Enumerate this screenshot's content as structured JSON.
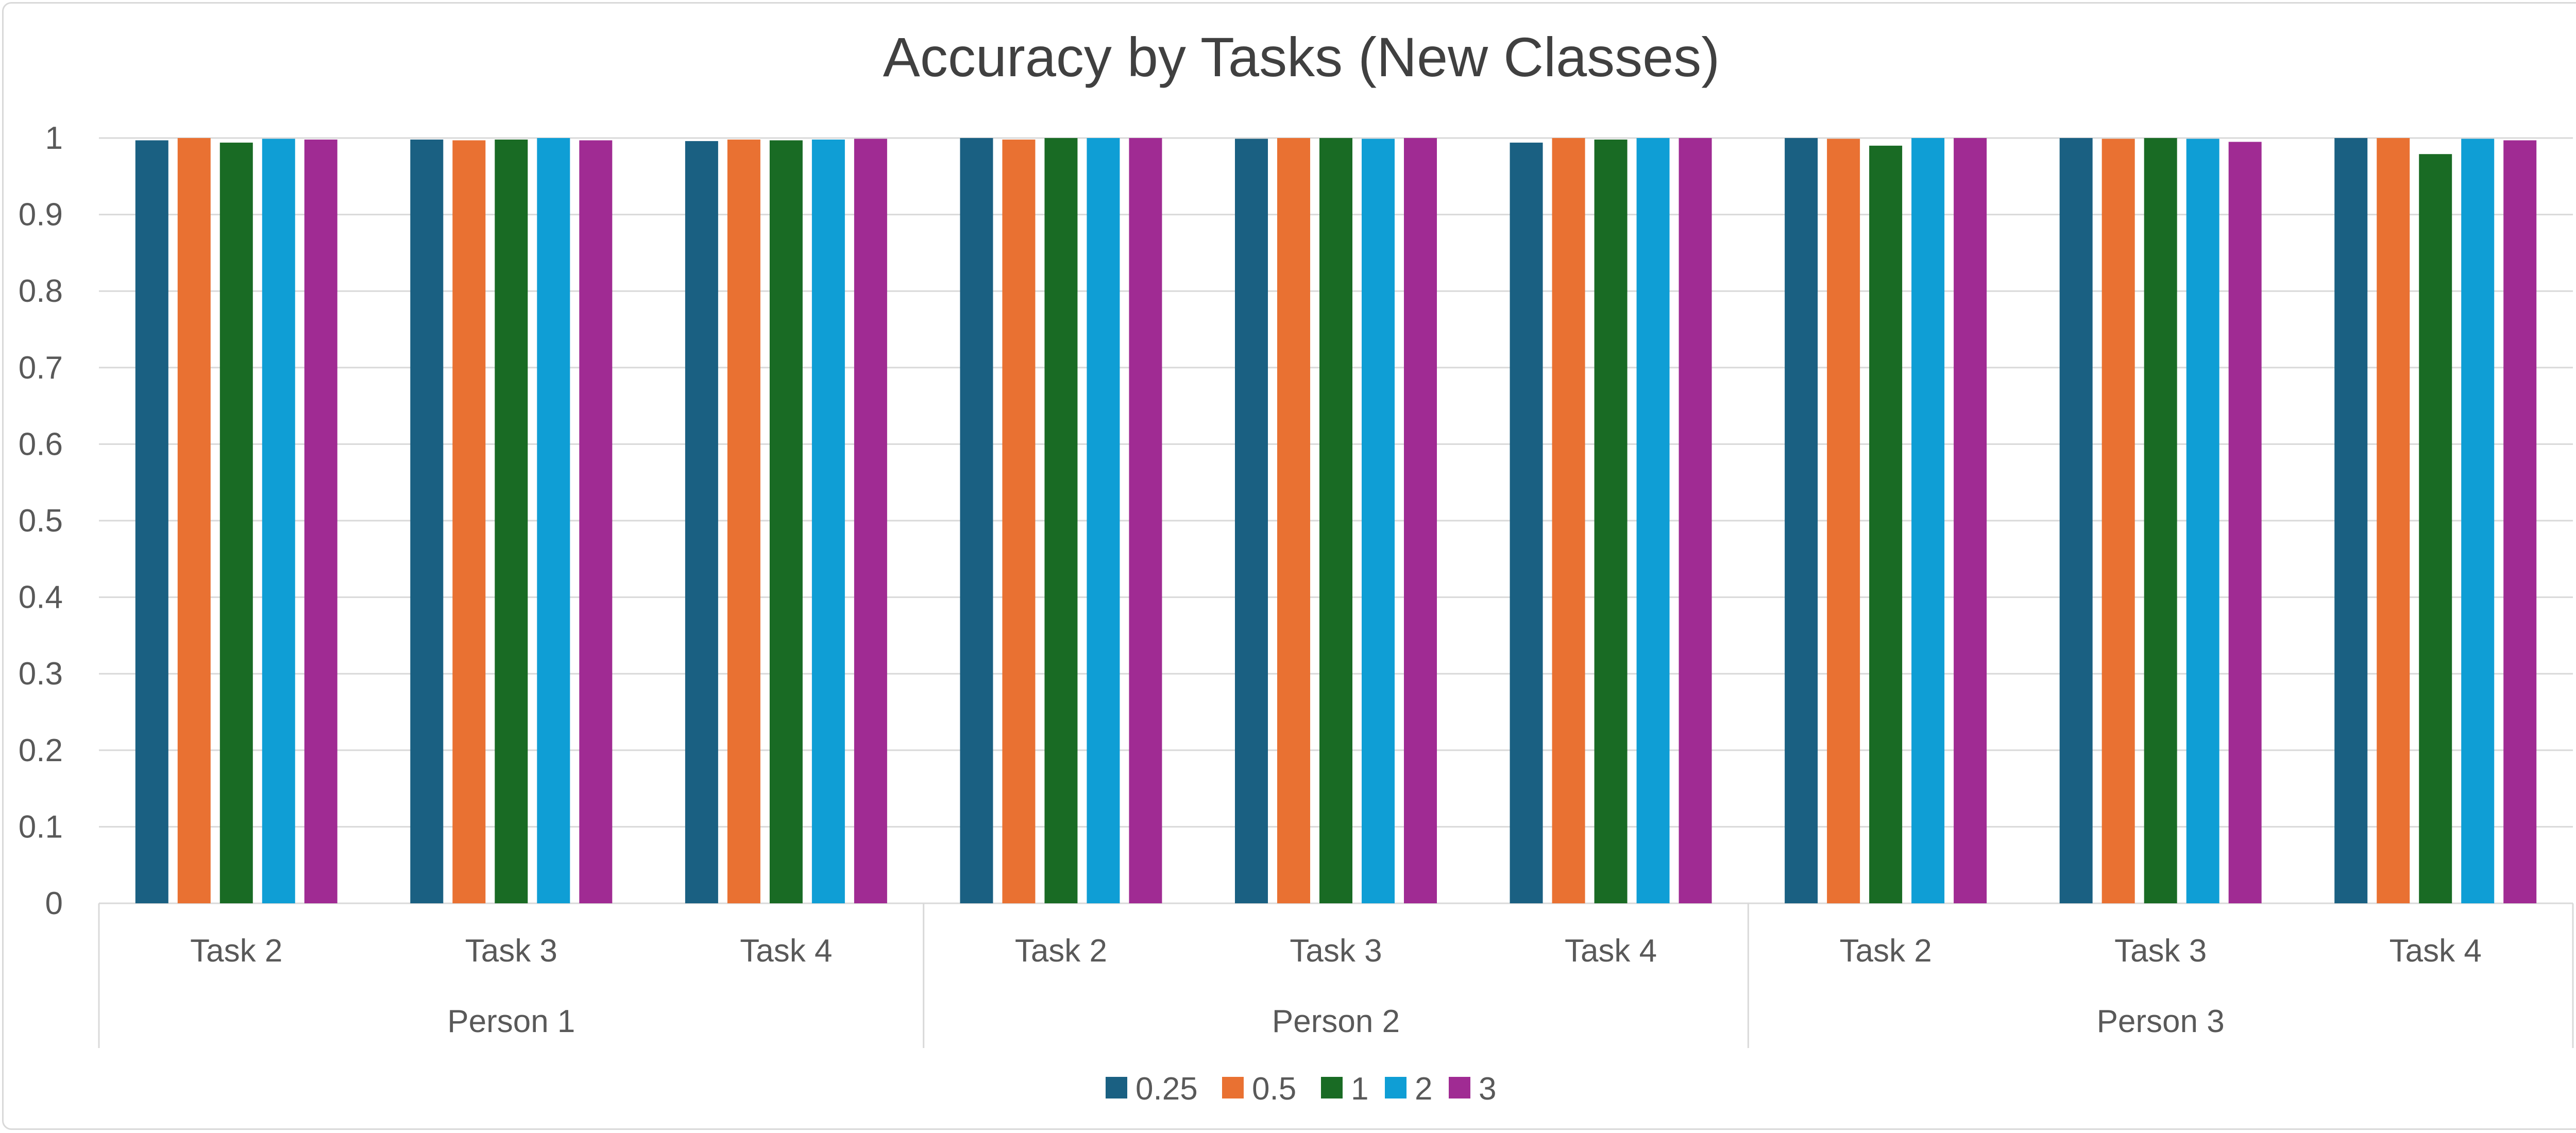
{
  "chart_data": {
    "type": "bar",
    "title": "Accuracy by Tasks (New Classes)",
    "xlabel": "",
    "ylabel": "",
    "ylim": [
      0,
      1
    ],
    "yticks": [
      "0",
      "0.1",
      "0.2",
      "0.3",
      "0.4",
      "0.5",
      "0.6",
      "0.7",
      "0.8",
      "0.9",
      "1"
    ],
    "grid": true,
    "legend_position": "bottom",
    "groups": [
      {
        "label": "Person 1",
        "categories": [
          "Task 2",
          "Task 3",
          "Task 4"
        ]
      },
      {
        "label": "Person 2",
        "categories": [
          "Task 2",
          "Task 3",
          "Task 4"
        ]
      },
      {
        "label": "Person 3",
        "categories": [
          "Task 2",
          "Task 3",
          "Task 4"
        ]
      }
    ],
    "categories": [
      "Person 1 / Task 2",
      "Person 1 / Task 3",
      "Person 1 / Task 4",
      "Person 2 / Task 2",
      "Person 2 / Task 3",
      "Person 2 / Task 4",
      "Person 3 / Task 2",
      "Person 3 / Task 3",
      "Person 3 / Task 4"
    ],
    "series": [
      {
        "name": "0.25",
        "color": "#1a6082",
        "values": [
          0.997,
          0.998,
          0.996,
          1.0,
          0.999,
          0.994,
          1.0,
          1.0,
          1.0
        ]
      },
      {
        "name": "0.5",
        "color": "#e97132",
        "values": [
          1.0,
          0.997,
          0.998,
          0.998,
          1.0,
          1.0,
          0.999,
          0.999,
          1.0
        ]
      },
      {
        "name": "1",
        "color": "#196b24",
        "values": [
          0.994,
          0.998,
          0.997,
          1.0,
          1.0,
          0.998,
          0.99,
          1.0,
          0.979
        ]
      },
      {
        "name": "2",
        "color": "#0f9ed5",
        "values": [
          0.999,
          1.0,
          0.998,
          1.0,
          0.999,
          1.0,
          1.0,
          0.999,
          0.999
        ]
      },
      {
        "name": "3",
        "color": "#a02b93",
        "values": [
          0.998,
          0.997,
          0.999,
          1.0,
          1.0,
          1.0,
          1.0,
          0.995,
          0.997
        ]
      }
    ]
  }
}
